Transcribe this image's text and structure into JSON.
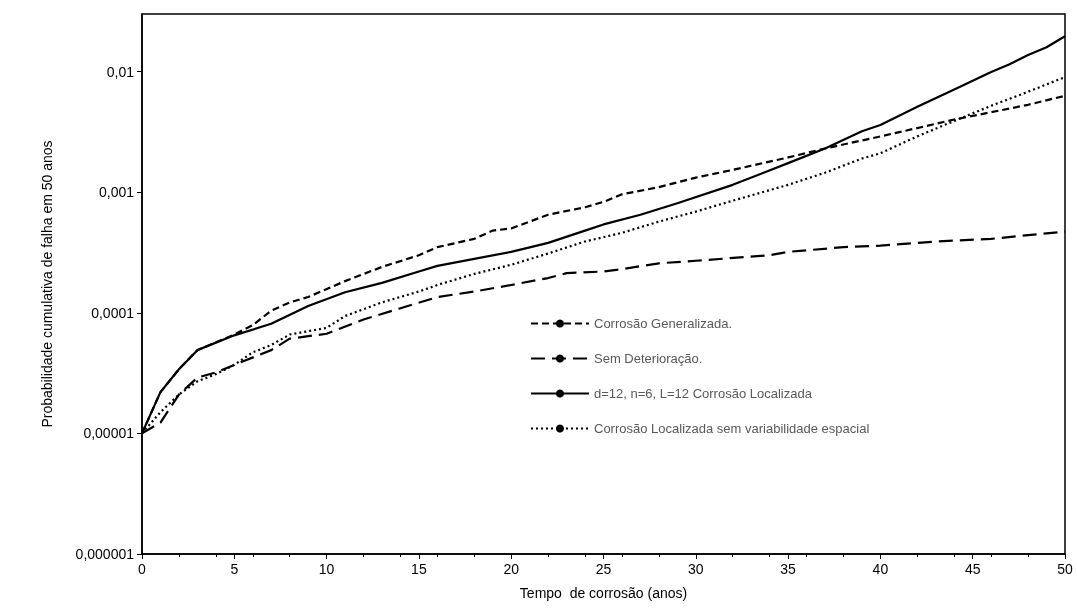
{
  "chart_data": {
    "type": "line",
    "xlabel": "Tempo  de corrosão (anos)",
    "ylabel": "Probabilidade cumulativa de falha em 50 anos",
    "log": "y",
    "grid": false,
    "legend": "bottom right",
    "marker": "none",
    "xlim": [
      0,
      50
    ],
    "xticks": [
      0,
      5,
      10,
      15,
      20,
      25,
      30,
      35,
      40,
      45,
      50
    ],
    "ylim": [
      1e-06,
      0.03
    ],
    "yticks": [
      {
        "value": 1e-06,
        "label": "0,000001"
      },
      {
        "value": 1e-05,
        "label": "0,00001"
      },
      {
        "value": 0.0001,
        "label": "0,0001"
      },
      {
        "value": 0.001,
        "label": "0,001"
      },
      {
        "value": 0.01,
        "label": "0,01"
      }
    ],
    "series": [
      {
        "name": "Corrosão Generalizada.",
        "color": "#000000",
        "line_style": "dashed",
        "x": [
          0,
          1,
          2,
          3,
          5,
          6,
          7,
          8,
          9,
          11,
          13,
          15,
          16,
          18,
          19,
          20,
          22,
          24,
          25,
          26,
          28,
          30,
          32,
          35,
          37,
          40,
          42,
          44,
          46,
          48,
          50
        ],
        "values": [
          1e-05,
          2.2e-05,
          3.4e-05,
          4.9e-05,
          6.6e-05,
          7.9e-05,
          0.000104,
          0.000122,
          0.000135,
          0.000183,
          0.00024,
          0.0003,
          0.00035,
          0.00041,
          0.00048,
          0.0005,
          0.00065,
          0.00075,
          0.00083,
          0.00096,
          0.0011,
          0.00132,
          0.00153,
          0.00194,
          0.0023,
          0.0029,
          0.0034,
          0.004,
          0.0046,
          0.0053,
          0.0063
        ]
      },
      {
        "name": "Sem Deterioração.",
        "color": "#000000",
        "line_style": "dashed",
        "x": [
          0,
          1,
          2,
          3,
          4,
          5,
          7,
          8,
          10,
          12,
          14,
          16,
          18,
          20,
          22,
          23,
          25,
          26,
          28,
          30,
          34,
          35,
          38,
          40,
          43,
          46,
          48,
          50
        ],
        "values": [
          1e-05,
          1.23e-05,
          2.1e-05,
          2.9e-05,
          3.2e-05,
          3.7e-05,
          4.9e-05,
          6.1e-05,
          6.7e-05,
          8.8e-05,
          0.000109,
          0.000135,
          0.00015,
          0.00017,
          0.000194,
          0.000213,
          0.00022,
          0.00023,
          0.000257,
          0.00027,
          0.0003,
          0.00032,
          0.00035,
          0.00036,
          0.00039,
          0.00041,
          0.00044,
          0.00047
        ]
      },
      {
        "name": "d=12, n=6, L=12 Corrosão Localizada",
        "color": "#000000",
        "line_style": "solid",
        "x": [
          0,
          1,
          2,
          3,
          5,
          7,
          9,
          11,
          13,
          15,
          16,
          18,
          20,
          22,
          24,
          25,
          27,
          29,
          32,
          35,
          37,
          39,
          40,
          42,
          44,
          46,
          47,
          48,
          49,
          50
        ],
        "values": [
          1e-05,
          2.2e-05,
          3.4e-05,
          4.9e-05,
          6.5e-05,
          8.1e-05,
          0.000114,
          0.000148,
          0.000177,
          0.00022,
          0.000245,
          0.00028,
          0.00032,
          0.00038,
          0.00048,
          0.00054,
          0.00065,
          0.00081,
          0.00115,
          0.00174,
          0.0023,
          0.0032,
          0.0036,
          0.0051,
          0.0071,
          0.0099,
          0.0115,
          0.0137,
          0.0159,
          0.0196
        ]
      },
      {
        "name": "Corrosão Localizada sem variabilidade espacial",
        "color": "#000000",
        "line_style": "dotted",
        "x": [
          0,
          1,
          2,
          3,
          4,
          5,
          6,
          7,
          8,
          10,
          11,
          13,
          15,
          16,
          18,
          20,
          22,
          24,
          26,
          28,
          30,
          32,
          35,
          37,
          39,
          40,
          42,
          44,
          46,
          48,
          50
        ],
        "values": [
          1e-05,
          1.5e-05,
          2.1e-05,
          2.7e-05,
          3.1e-05,
          3.7e-05,
          4.7e-05,
          5.4e-05,
          6.6e-05,
          7.5e-05,
          9.4e-05,
          0.000122,
          0.00015,
          0.00017,
          0.00021,
          0.00025,
          0.00031,
          0.00039,
          0.00046,
          0.00057,
          0.00069,
          0.00085,
          0.00115,
          0.00145,
          0.0019,
          0.0021,
          0.0029,
          0.0039,
          0.0052,
          0.0068,
          0.009
        ]
      }
    ]
  }
}
